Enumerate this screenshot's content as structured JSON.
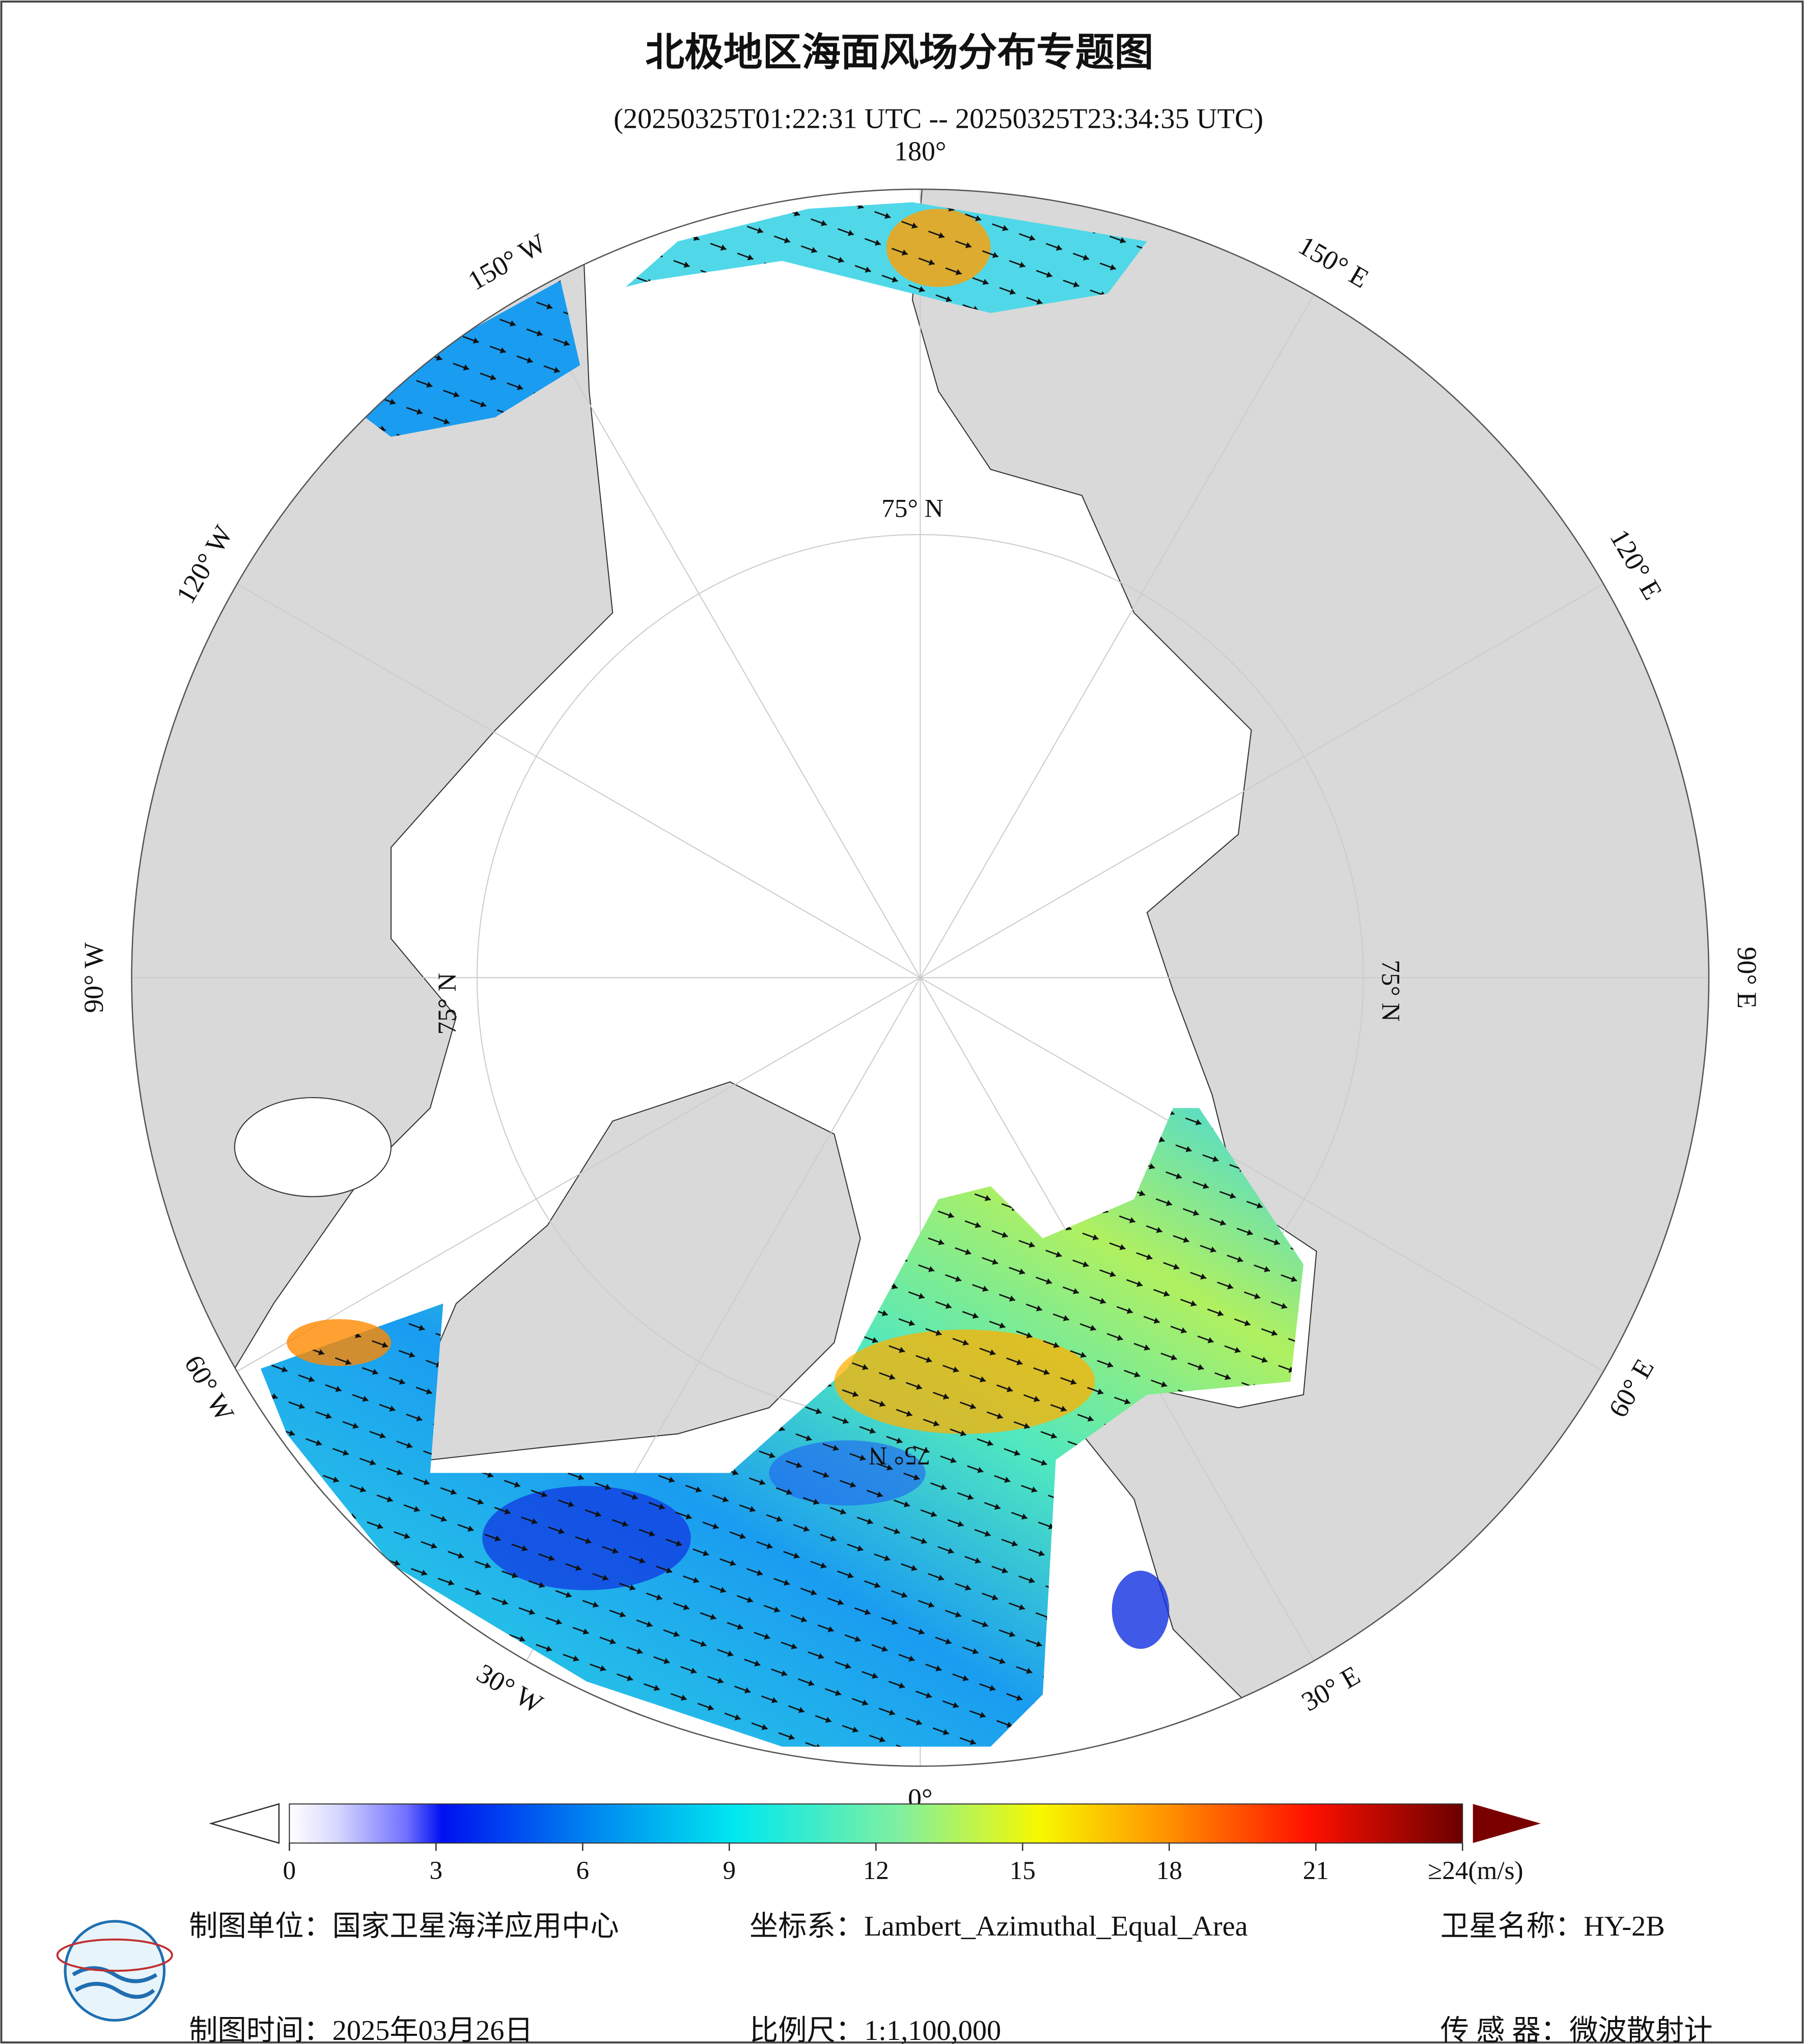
{
  "title": "北极地区海面风场分布专题图",
  "subtitle": "(20250325T01:22:31 UTC -- 20250325T23:34:35 UTC)",
  "map": {
    "longitude_labels": [
      "180°",
      "150° E",
      "120° E",
      "90° E",
      "60° E",
      "30° E",
      "0°",
      "30° W",
      "60° W",
      "90° W",
      "120° W",
      "150° W"
    ],
    "latitude_labels": [
      "75° N",
      "75° N",
      "75° N",
      "75° N"
    ]
  },
  "colorbar": {
    "lim": [
      0,
      24
    ],
    "ticks": [
      0,
      3,
      6,
      9,
      12,
      15,
      18,
      21,
      {
        "value": 24,
        "label": "≥24(m/s)"
      }
    ]
  },
  "footer": {
    "organization": "制图单位：国家卫星海洋应用中心",
    "coordinate_system": "坐标系：Lambert_Azimuthal_Equal_Area",
    "satellite": "卫星名称：HY-2B",
    "date": "制图时间：2025年03月26日",
    "scale": "比例尺：1:1,100,000",
    "sensor": "传 感 器：微波散射计"
  }
}
